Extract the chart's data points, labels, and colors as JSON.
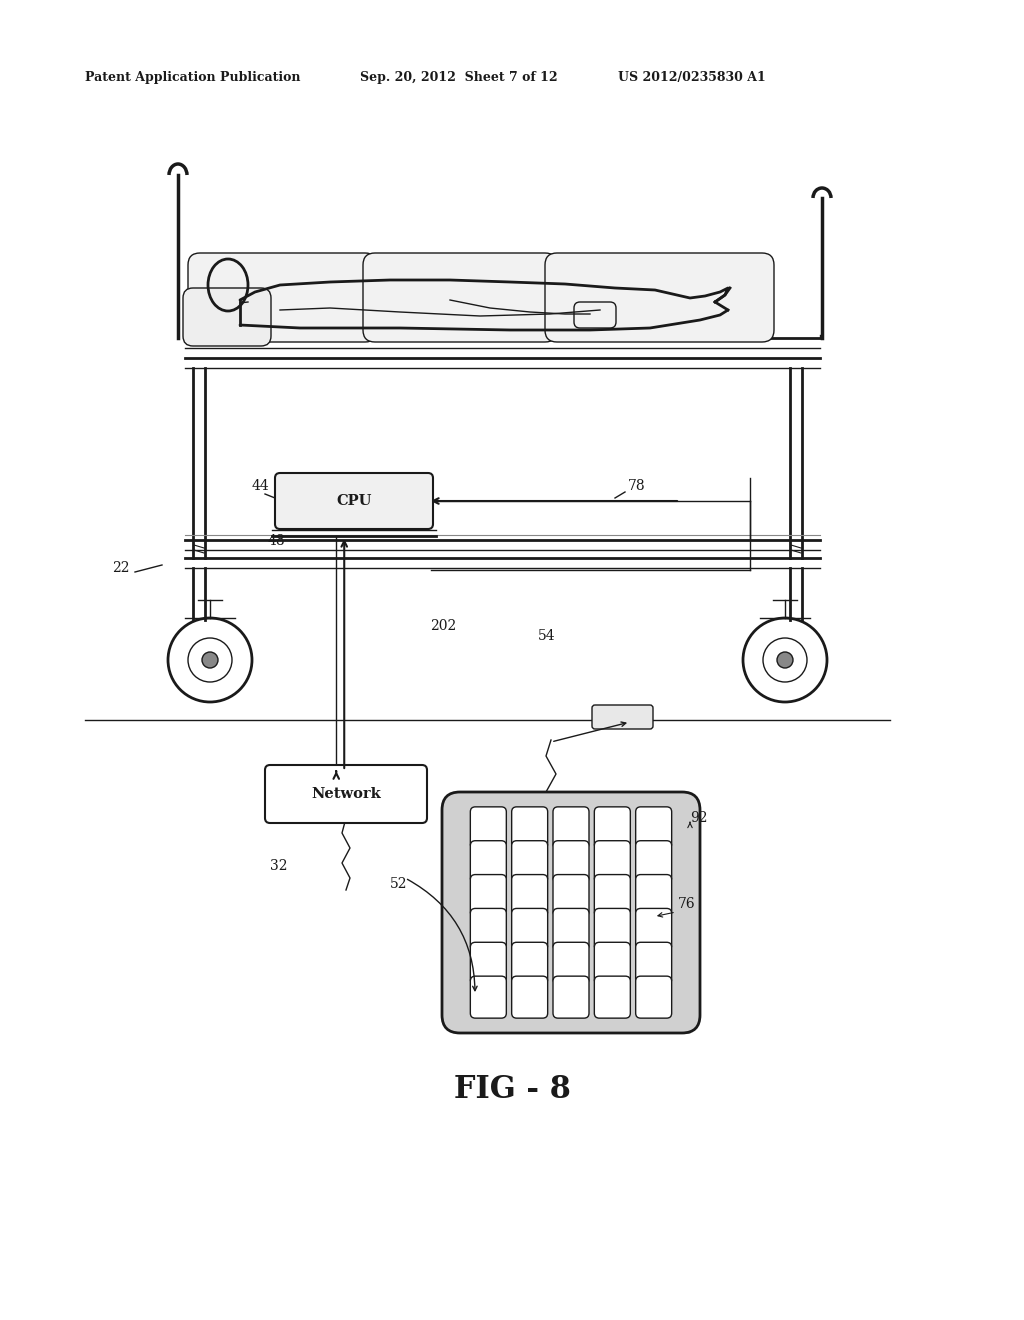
{
  "background_color": "#ffffff",
  "header_left": "Patent Application Publication",
  "header_mid": "Sep. 20, 2012  Sheet 7 of 12",
  "header_right": "US 2012/0235830 A1",
  "fig_label": "FIG - 8",
  "line_color": "#1a1a1a"
}
